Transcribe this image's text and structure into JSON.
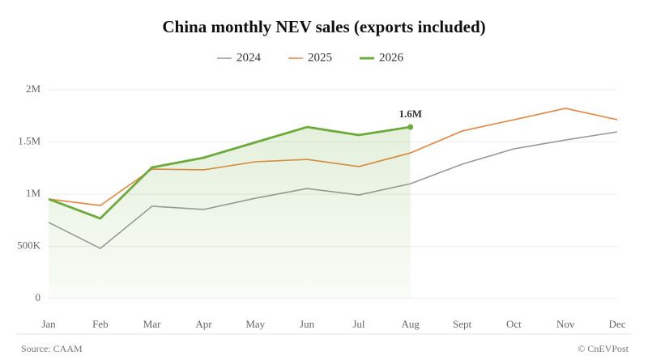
{
  "chart_data": {
    "type": "line",
    "title": "China monthly NEV sales (exports included)",
    "categories": [
      "Jan",
      "Feb",
      "Mar",
      "Apr",
      "May",
      "Jun",
      "Jul",
      "Aug",
      "Sept",
      "Oct",
      "Nov",
      "Dec"
    ],
    "series": [
      {
        "name": "2024",
        "color": "#999999",
        "values": [
          729000,
          480000,
          884000,
          853000,
          961000,
          1054000,
          992000,
          1100000,
          1287000,
          1434000,
          1519000,
          1597000
        ]
      },
      {
        "name": "2025",
        "color": "#e8843c",
        "values": [
          953000,
          891000,
          1240000,
          1233000,
          1310000,
          1333000,
          1264000,
          1395000,
          1605000,
          1713000,
          1822000,
          1713000
        ]
      },
      {
        "name": "2026",
        "color": "#6aab3a",
        "values": [
          953000,
          767000,
          1256000,
          1349000,
          1496000,
          1643000,
          1566000,
          1643000,
          null,
          null,
          null,
          null
        ],
        "value_labels": [
          null,
          null,
          null,
          null,
          null,
          null,
          null,
          "1.6M",
          null,
          null,
          null,
          null
        ]
      }
    ],
    "ylim": [
      0,
      2000000
    ],
    "yticks": [
      0,
      {
        "value": 500000,
        "label": "500K"
      },
      {
        "value": 1000000,
        "label": "1M"
      },
      {
        "value": 1500000,
        "label": "1.5M"
      },
      {
        "value": 2000000,
        "label": "2M"
      }
    ],
    "grid": true,
    "source": "Source: CAAM",
    "credit": "© CnEVPost"
  }
}
